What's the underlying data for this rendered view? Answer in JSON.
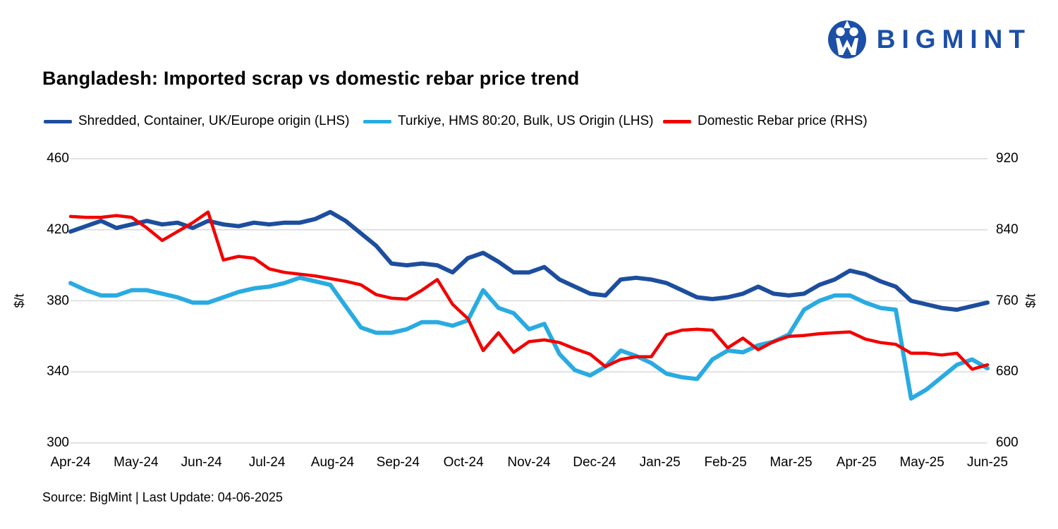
{
  "logo": {
    "brand": "BIGMINT"
  },
  "title": "Bangladesh: Imported scrap vs domestic rebar price trend",
  "source_note": "Source: BigMint | Last Update: 04-06-2025",
  "chart_data": {
    "type": "line",
    "title": "Bangladesh: Imported scrap vs domestic rebar price trend",
    "grid": "horizontal",
    "legend_position": "top",
    "x_frequency": "weekly",
    "x_tick_labels": [
      "Apr-24",
      "May-24",
      "Jun-24",
      "Jul-24",
      "Aug-24",
      "Sep-24",
      "Oct-24",
      "Nov-24",
      "Dec-24",
      "Jan-25",
      "Feb-25",
      "Mar-25",
      "Apr-25",
      "May-25",
      "Jun-25"
    ],
    "left_axis": {
      "label": "$/t",
      "ticks": [
        460,
        420,
        380,
        340,
        300
      ],
      "range": [
        300,
        460
      ]
    },
    "right_axis": {
      "label": "$/t",
      "ticks": [
        920,
        840,
        760,
        680,
        600
      ],
      "range": [
        600,
        920
      ]
    },
    "series": [
      {
        "name": "Shredded, Container, UK/Europe origin (LHS)",
        "axis": "left",
        "color": "#1d4e9e",
        "values": [
          419,
          422,
          425,
          421,
          423,
          425,
          423,
          424,
          421,
          425,
          423,
          422,
          424,
          423,
          424,
          424,
          426,
          430,
          425,
          418,
          411,
          401,
          400,
          401,
          400,
          396,
          404,
          407,
          402,
          396,
          396,
          399,
          392,
          388,
          384,
          383,
          392,
          393,
          392,
          390,
          386,
          382,
          381,
          382,
          384,
          388,
          384,
          383,
          384,
          389,
          392,
          397,
          395,
          391,
          388,
          380,
          378,
          376,
          375,
          377,
          379
        ]
      },
      {
        "name": "Turkiye, HMS 80:20, Bulk, US Origin (LHS)",
        "axis": "left",
        "color": "#29abe2",
        "values": [
          390,
          386,
          383,
          383,
          386,
          386,
          384,
          382,
          379,
          379,
          382,
          385,
          387,
          388,
          390,
          393,
          391,
          389,
          377,
          365,
          362,
          362,
          364,
          368,
          368,
          366,
          369,
          386,
          376,
          373,
          364,
          367,
          350,
          341,
          338,
          343,
          352,
          349,
          345,
          339,
          337,
          336,
          347,
          352,
          351,
          355,
          357,
          361,
          375,
          380,
          383,
          383,
          379,
          376,
          375,
          325,
          330,
          337,
          344,
          347,
          342
        ]
      },
      {
        "name": "Domestic Rebar price (RHS)",
        "axis": "right",
        "color": "#f20000",
        "values": [
          855,
          854,
          854,
          856,
          854,
          842,
          828,
          838,
          848,
          860,
          806,
          810,
          808,
          796,
          792,
          790,
          788,
          785,
          782,
          778,
          767,
          763,
          762,
          772,
          784,
          756,
          740,
          704,
          724,
          702,
          714,
          716,
          713,
          706,
          700,
          686,
          694,
          697,
          697,
          722,
          727,
          728,
          727,
          707,
          718,
          705,
          714,
          720,
          721,
          723,
          724,
          725,
          717,
          713,
          711,
          701,
          701,
          699,
          701,
          683,
          688
        ]
      }
    ]
  }
}
